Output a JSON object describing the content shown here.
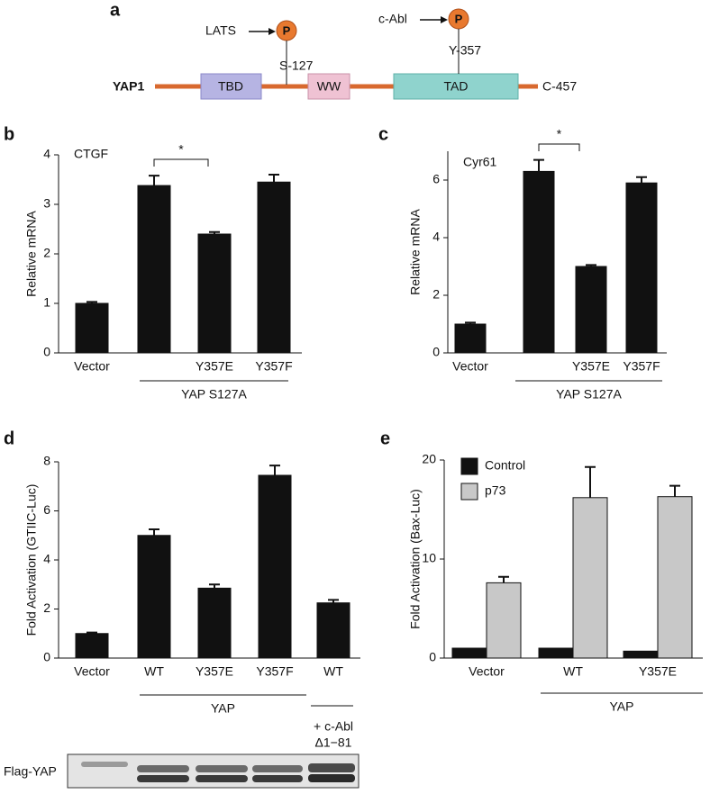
{
  "diagram": {
    "panel": "a",
    "protein": "YAP1",
    "end": "C-457",
    "domains": [
      "TBD",
      "WW",
      "TAD"
    ],
    "sites": [
      {
        "kinase": "LATS",
        "label": "P",
        "residue": "S-127"
      },
      {
        "kinase": "c-Abl",
        "label": "P",
        "residue": "Y-357"
      }
    ]
  },
  "chart_data": [
    {
      "type": "bar",
      "panel": "b",
      "title": "CTGF",
      "y_label": "Relative mRNA",
      "categories": [
        "Vector",
        null,
        "Y357E",
        "Y357F"
      ],
      "values": [
        1.0,
        3.38,
        2.4,
        3.45
      ],
      "errors": [
        0.03,
        0.2,
        0.04,
        0.15
      ],
      "color": "#111111",
      "ylim": [
        0,
        4
      ],
      "yticks": [
        0,
        1,
        2,
        3,
        4
      ],
      "group_label": "YAP S127A",
      "significance": "*"
    },
    {
      "type": "bar",
      "panel": "c",
      "title": "Cyr61",
      "y_label": "Relative mRNA",
      "categories": [
        "Vector",
        null,
        "Y357E",
        "Y357F"
      ],
      "values": [
        1.0,
        6.3,
        3.0,
        5.9
      ],
      "errors": [
        0.05,
        0.4,
        0.05,
        0.2
      ],
      "color": "#111111",
      "ylim": [
        0,
        7
      ],
      "yticks": [
        0,
        2,
        4,
        6
      ],
      "group_label": "YAP S127A",
      "significance": "*"
    },
    {
      "type": "bar",
      "panel": "d",
      "y_label": "Fold Activation (GTIIC-Luc)",
      "categories": [
        "Vector",
        "WT",
        "Y357E",
        "Y357F",
        "WT"
      ],
      "values": [
        1.0,
        5.0,
        2.85,
        7.45,
        2.25
      ],
      "errors": [
        0.04,
        0.25,
        0.15,
        0.4,
        0.12
      ],
      "color": "#111111",
      "ylim": [
        0,
        8
      ],
      "yticks": [
        0,
        2,
        4,
        6,
        8
      ],
      "group_label": "YAP",
      "annotations": [
        "+ c-Abl",
        "Δ1−81"
      ]
    },
    {
      "type": "grouped_bar",
      "panel": "e",
      "y_label": "Fold Activation (Bax-Luc)",
      "categories": [
        "Vector",
        "WT",
        "Y357E"
      ],
      "series": [
        {
          "name": "Control",
          "color": "#111111",
          "values": [
            1.0,
            1.0,
            0.7
          ],
          "errors": [
            null,
            null,
            null
          ]
        },
        {
          "name": "p73",
          "color": "#c8c8c8",
          "values": [
            7.6,
            16.2,
            16.3
          ],
          "errors": [
            0.6,
            3.1,
            1.1
          ]
        }
      ],
      "ylim": [
        0,
        20
      ],
      "yticks": [
        0,
        10,
        20
      ],
      "legend": "top-left",
      "group_label": "YAP"
    }
  ],
  "blot": {
    "label": "Flag-YAP"
  }
}
